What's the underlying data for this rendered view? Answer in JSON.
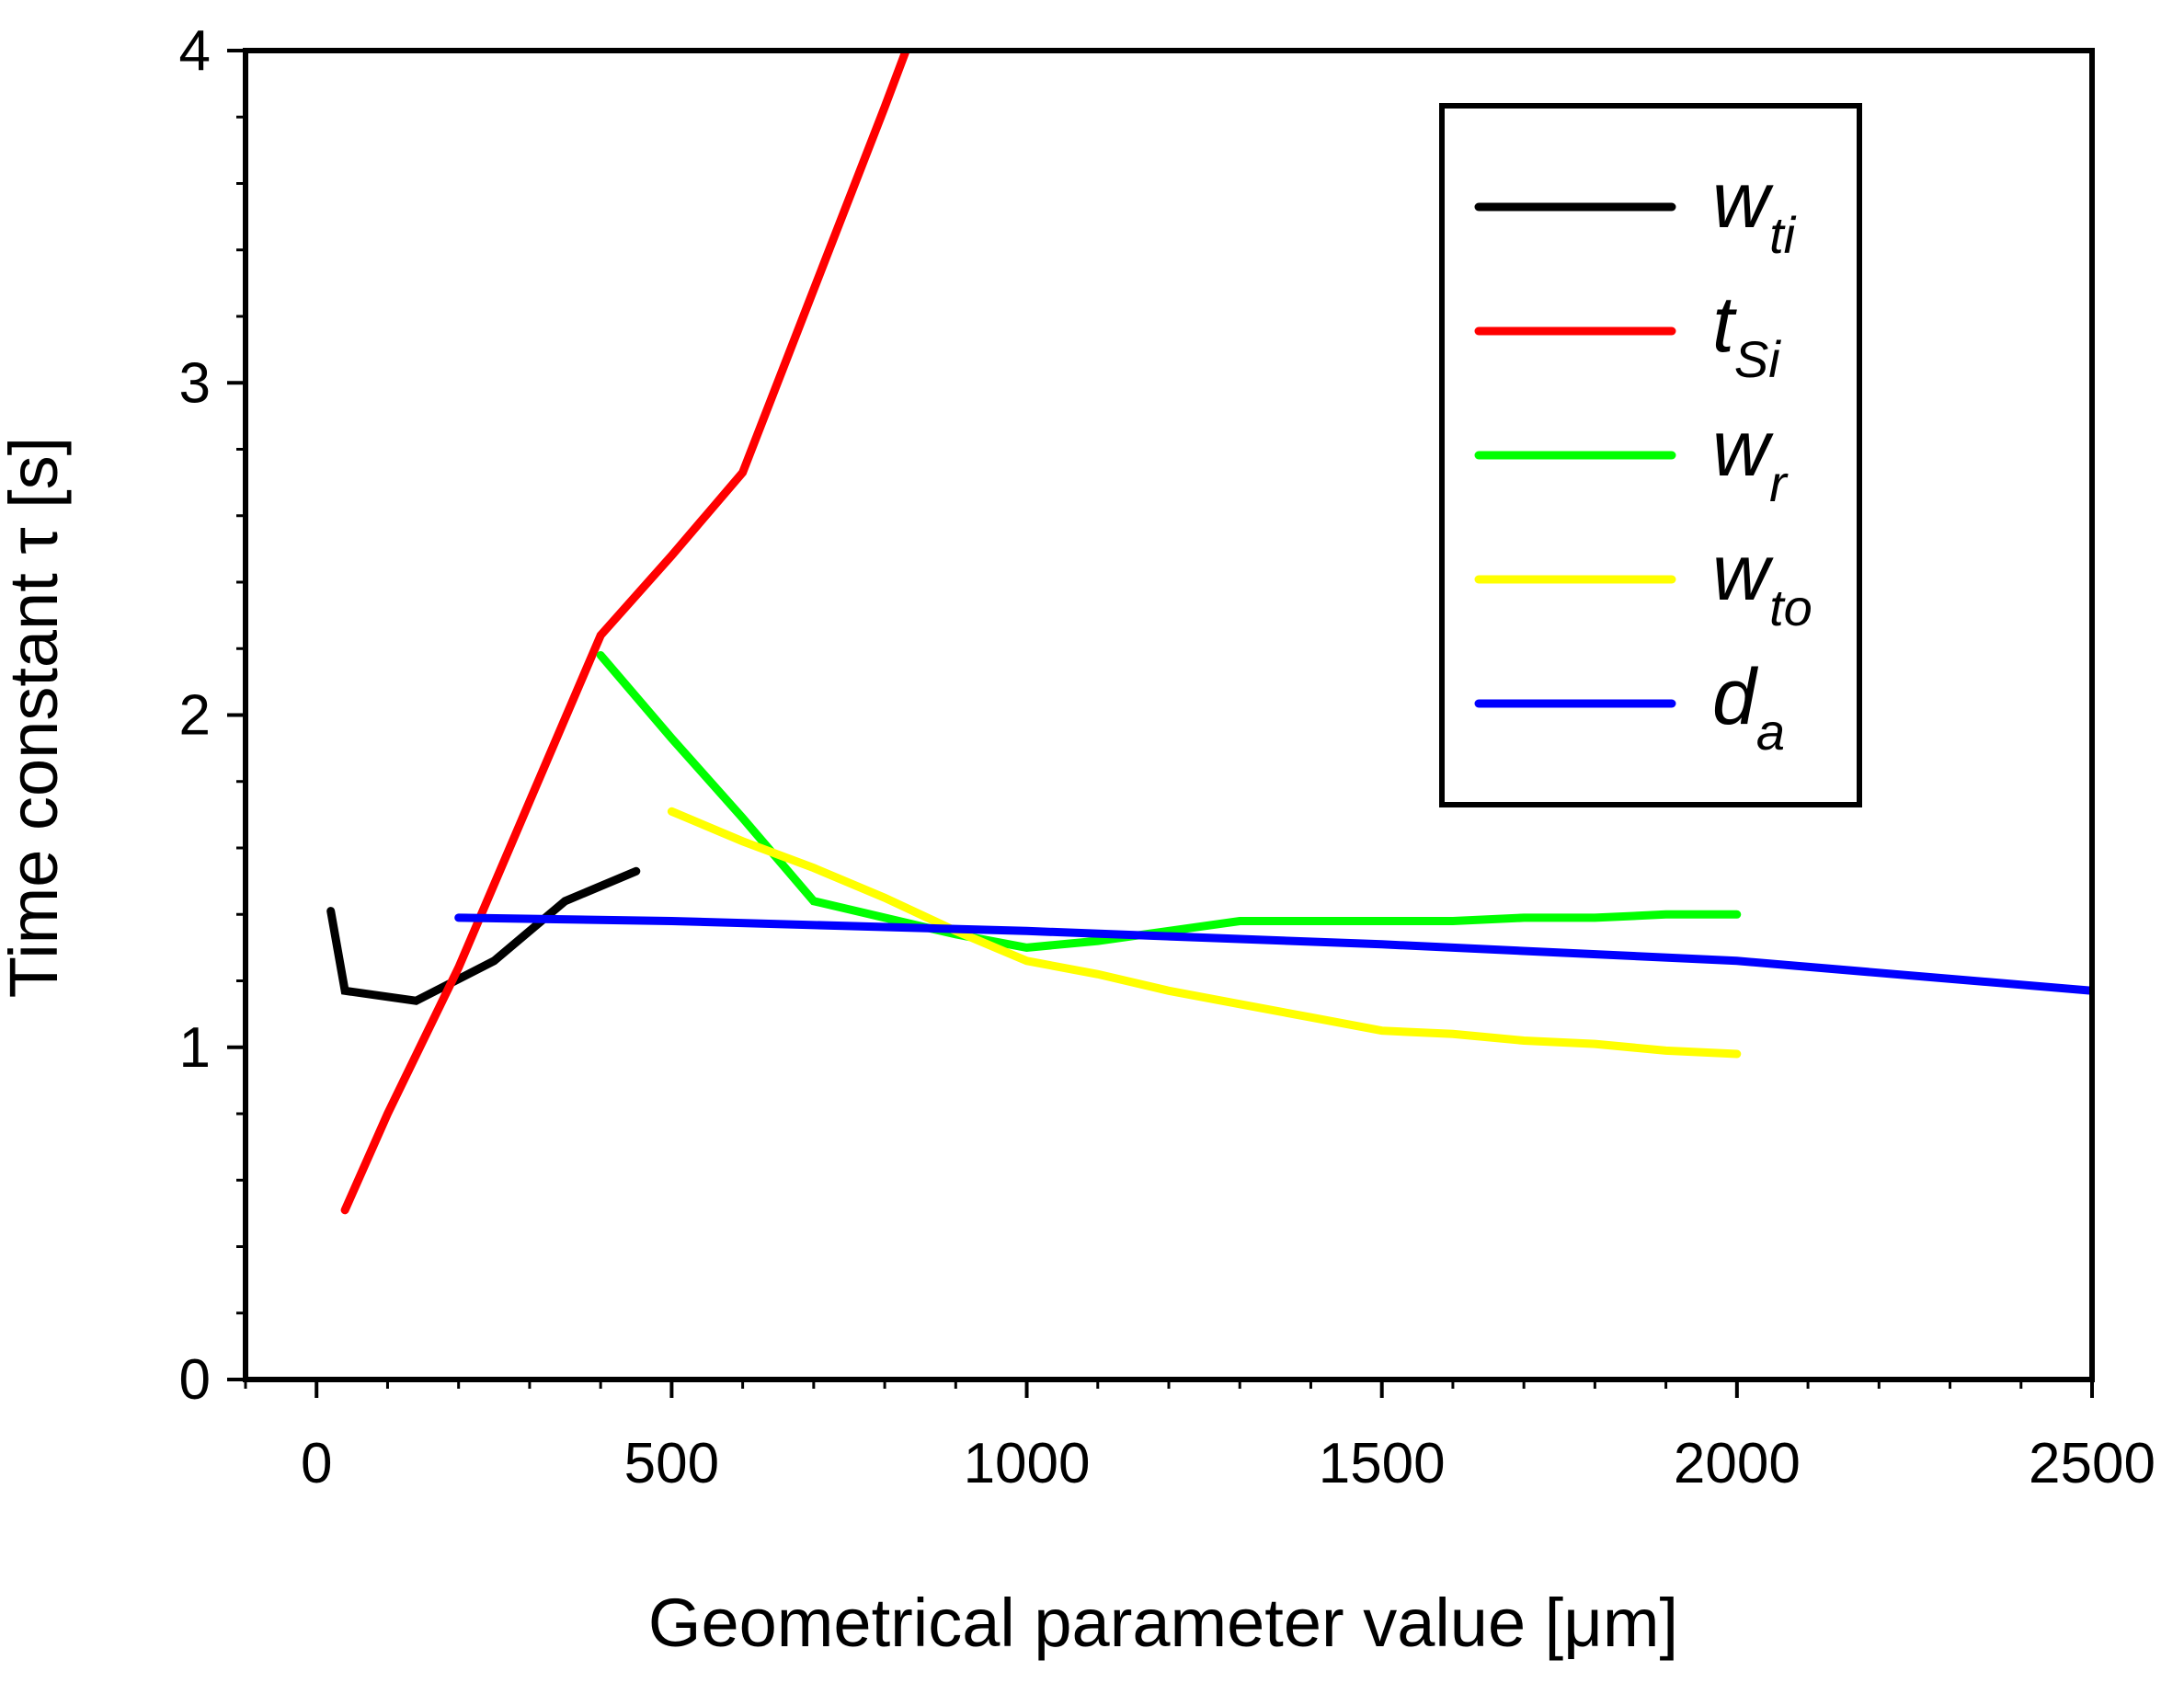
{
  "chart_data": {
    "type": "line",
    "title": "",
    "xlabel": "Geometrical parameter value [μm]",
    "ylabel": "Time constant τ [s]",
    "xlim": [
      -100,
      2500
    ],
    "ylim": [
      0,
      4
    ],
    "xticks": [
      0,
      500,
      1000,
      1500,
      2000,
      2500
    ],
    "xtick_labels": [
      "0",
      "500",
      "1000",
      "1500",
      "2000",
      "2500"
    ],
    "yticks": [
      0,
      1,
      2,
      3,
      4
    ],
    "ytick_labels": [
      "0",
      "1",
      "2",
      "3",
      "4"
    ],
    "grid": false,
    "legend_position": "top-right",
    "series": [
      {
        "name": "w_ti",
        "base": "w",
        "sub": "ti",
        "color": "#000000",
        "x": [
          20,
          40,
          140,
          250,
          350,
          450
        ],
        "y": [
          1.41,
          1.17,
          1.14,
          1.26,
          1.44,
          1.53
        ]
      },
      {
        "name": "t_Si",
        "base": "t",
        "sub": "Si",
        "color": "#ff0000",
        "x": [
          40,
          100,
          200,
          300,
          400,
          500,
          600,
          700,
          800,
          830
        ],
        "y": [
          0.51,
          0.8,
          1.24,
          1.74,
          2.24,
          2.48,
          2.73,
          3.28,
          3.83,
          4.0
        ]
      },
      {
        "name": "w_r",
        "base": "w",
        "sub": "r",
        "color": "#00ff00",
        "x": [
          400,
          500,
          600,
          700,
          800,
          900,
          1000,
          1100,
          1200,
          1300,
          1400,
          1500,
          1600,
          1700,
          1800,
          1900,
          2000
        ],
        "y": [
          2.18,
          1.93,
          1.69,
          1.44,
          1.39,
          1.34,
          1.3,
          1.32,
          1.35,
          1.38,
          1.38,
          1.38,
          1.38,
          1.39,
          1.39,
          1.4,
          1.4
        ]
      },
      {
        "name": "w_to",
        "base": "w",
        "sub": "to",
        "color": "#ffff00",
        "x": [
          500,
          600,
          700,
          800,
          900,
          1000,
          1100,
          1200,
          1300,
          1400,
          1500,
          1600,
          1700,
          1800,
          1900,
          2000
        ],
        "y": [
          1.71,
          1.62,
          1.54,
          1.45,
          1.35,
          1.26,
          1.22,
          1.17,
          1.13,
          1.09,
          1.05,
          1.04,
          1.02,
          1.01,
          0.99,
          0.98
        ]
      },
      {
        "name": "d_a",
        "base": "d",
        "sub": "a",
        "color": "#0000ff",
        "x": [
          200,
          500,
          1000,
          1500,
          2000,
          2500
        ],
        "y": [
          1.39,
          1.38,
          1.35,
          1.31,
          1.26,
          1.17
        ]
      }
    ]
  }
}
